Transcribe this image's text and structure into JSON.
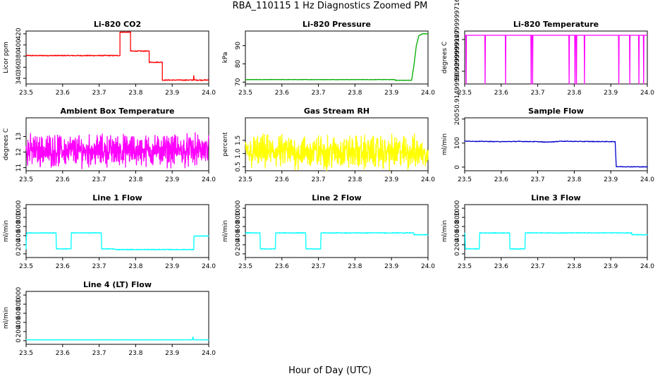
{
  "figure": {
    "title": "RBA_110115  1 Hz Diagnostics Zoomed PM",
    "xlabel": "Hour of Day (UTC)"
  },
  "chart_data": [
    {
      "type": "line",
      "title": "Li-820 CO2",
      "ylabel": "Licor ppm",
      "color": "#ff0000",
      "xlim": [
        23.5,
        24.0
      ],
      "ylim": [
        330,
        425
      ],
      "xticks": [
        23.5,
        23.6,
        23.7,
        23.8,
        23.9,
        24.0
      ],
      "yticks": [
        340,
        360,
        380,
        400,
        420
      ],
      "noise": 0.8,
      "series": [
        {
          "x": [
            23.5,
            23.757,
            23.757,
            23.786,
            23.786,
            23.837,
            23.837,
            23.873,
            23.873,
            23.958,
            23.959,
            23.96,
            24.0
          ],
          "values": [
            381,
            381,
            423,
            423,
            389,
            389,
            369,
            369,
            337,
            337,
            345,
            337,
            337
          ]
        }
      ]
    },
    {
      "type": "line",
      "title": "Li-820 Pressure",
      "ylabel": "kPa",
      "color": "#00aa00",
      "xlim": [
        23.5,
        24.0
      ],
      "ylim": [
        69,
        98
      ],
      "xticks": [
        23.5,
        23.6,
        23.7,
        23.8,
        23.9,
        24.0
      ],
      "yticks": [
        70,
        80,
        90
      ],
      "noise": 0.1,
      "series": [
        {
          "x": [
            23.5,
            23.91,
            23.91,
            23.955,
            23.962,
            23.968,
            23.975,
            23.985,
            24.0
          ],
          "values": [
            71.4,
            71.4,
            71.0,
            71.0,
            80,
            90,
            95.5,
            96.5,
            96.5
          ]
        }
      ]
    },
    {
      "type": "line",
      "title": "Li-820 Temperature",
      "ylabel": "degrees C",
      "color": "#ff00ff",
      "xlim": [
        23.5,
        24.0
      ],
      "ylim": [
        50.909,
        50.934
      ],
      "xticks": [
        23.5,
        23.6,
        23.7,
        23.8,
        23.9,
        24.0
      ],
      "yticks": [
        50.915,
        50.93
      ],
      "noise": 0,
      "baseline": 50.932,
      "spikes_down": [
        23.504,
        23.556,
        23.612,
        23.682,
        23.686,
        23.786,
        23.802,
        23.806,
        23.828,
        23.922,
        23.952,
        23.977,
        23.99
      ],
      "spike_level": 50.909
    },
    {
      "type": "line",
      "title": "Ambient Box Temperature",
      "ylabel": "degrees C",
      "color": "#ff00ff",
      "xlim": [
        23.5,
        24.0
      ],
      "ylim": [
        10.8,
        14.2
      ],
      "xticks": [
        23.5,
        23.6,
        23.7,
        23.8,
        23.9,
        24.0
      ],
      "yticks": [
        11.0,
        12.0,
        13.0
      ],
      "noise_center": 12.1,
      "noise_amp": 1.2
    },
    {
      "type": "line",
      "title": "Gas Stream RH",
      "ylabel": "percent",
      "color": "#ffff00",
      "xlim": [
        23.5,
        24.0
      ],
      "ylim": [
        0.35,
        2.35
      ],
      "xticks": [
        23.5,
        23.6,
        23.7,
        23.8,
        23.9,
        24.0
      ],
      "yticks": [
        0.5,
        1.0,
        1.5
      ],
      "noise_center": 1.05,
      "noise_amp": 0.75
    },
    {
      "type": "line",
      "title": "Sample Flow",
      "ylabel": "ml/min",
      "color": "#0000cc",
      "xlim": [
        23.5,
        24.0
      ],
      "ylim": [
        -15,
        205
      ],
      "xticks": [
        23.5,
        23.6,
        23.7,
        23.8,
        23.9,
        24.0
      ],
      "yticks": [
        0,
        100,
        200
      ],
      "noise": 1.2,
      "series": [
        {
          "x": [
            23.5,
            23.6,
            23.65,
            23.7,
            23.72,
            23.75,
            23.76,
            23.8,
            23.912,
            23.915,
            24.0
          ],
          "values": [
            108,
            106,
            107,
            106,
            104,
            106,
            108,
            107,
            106,
            2,
            1
          ]
        }
      ]
    },
    {
      "type": "line",
      "title": "Line 1 Flow",
      "ylabel": "ml/min",
      "color": "#00ffff",
      "xlim": [
        23.5,
        24.0
      ],
      "ylim": [
        -80,
        1080
      ],
      "xticks": [
        23.5,
        23.6,
        23.7,
        23.8,
        23.9,
        24.0
      ],
      "yticks": [
        0,
        200,
        400,
        600,
        800,
        1000
      ],
      "noise": 8,
      "series": [
        {
          "x": [
            23.5,
            23.501,
            23.502,
            23.582,
            23.583,
            23.623,
            23.624,
            23.706,
            23.707,
            23.74,
            23.745,
            23.959,
            23.96,
            24.0
          ],
          "values": [
            100,
            400,
            460,
            460,
            110,
            110,
            460,
            460,
            110,
            110,
            95,
            95,
            390,
            390
          ]
        }
      ]
    },
    {
      "type": "line",
      "title": "Line 2 Flow",
      "ylabel": "ml/min",
      "color": "#00ffff",
      "xlim": [
        23.5,
        24.0
      ],
      "ylim": [
        -80,
        1080
      ],
      "xticks": [
        23.5,
        23.6,
        23.7,
        23.8,
        23.9,
        24.0
      ],
      "yticks": [
        0,
        200,
        400,
        600,
        800,
        1000
      ],
      "noise": 8,
      "series": [
        {
          "x": [
            23.5,
            23.54,
            23.541,
            23.582,
            23.583,
            23.665,
            23.666,
            23.706,
            23.707,
            23.96,
            23.962,
            24.0
          ],
          "values": [
            460,
            460,
            110,
            110,
            460,
            460,
            110,
            110,
            460,
            460,
            420,
            420
          ]
        }
      ]
    },
    {
      "type": "line",
      "title": "Line 3 Flow",
      "ylabel": "ml/min",
      "color": "#00ffff",
      "xlim": [
        23.5,
        24.0
      ],
      "ylim": [
        -80,
        1080
      ],
      "xticks": [
        23.5,
        23.6,
        23.7,
        23.8,
        23.9,
        24.0
      ],
      "yticks": [
        0,
        200,
        400,
        600,
        800,
        1000
      ],
      "noise": 8,
      "series": [
        {
          "x": [
            23.5,
            23.501,
            23.502,
            23.54,
            23.541,
            23.623,
            23.624,
            23.665,
            23.666,
            23.957,
            23.958,
            24.0
          ],
          "values": [
            450,
            450,
            110,
            110,
            460,
            460,
            110,
            110,
            460,
            460,
            420,
            420
          ]
        }
      ]
    },
    {
      "type": "line",
      "title": "Line 4 (LT) Flow",
      "ylabel": "ml/min",
      "color": "#00ffff",
      "xlim": [
        23.5,
        24.0
      ],
      "ylim": [
        -80,
        1080
      ],
      "xticks": [
        23.5,
        23.6,
        23.7,
        23.8,
        23.9,
        24.0
      ],
      "yticks": [
        0,
        200,
        400,
        600,
        800,
        1000
      ],
      "noise": 3,
      "series": [
        {
          "x": [
            23.5,
            23.955,
            23.957,
            23.959,
            23.961,
            24.0
          ],
          "values": [
            18,
            18,
            80,
            18,
            18,
            18
          ]
        }
      ]
    }
  ]
}
